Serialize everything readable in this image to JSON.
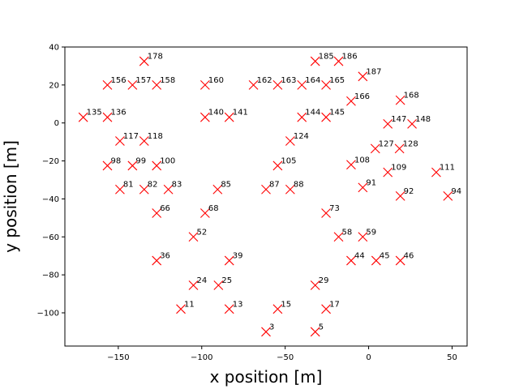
{
  "chart_data": {
    "type": "scatter",
    "title": "",
    "xlabel": "x position [m]",
    "ylabel": "y position [m]",
    "xlim": [
      -182,
      59
    ],
    "ylim": [
      -117.5,
      40
    ],
    "xticks": [
      -150,
      -100,
      -50,
      0,
      50
    ],
    "yticks": [
      -100,
      -80,
      -60,
      -40,
      -20,
      0,
      20,
      40
    ],
    "grid": false,
    "marker": "x",
    "marker_color": "#ff0000",
    "points": [
      {
        "label": "3",
        "x": -61.5,
        "y": -110
      },
      {
        "label": "5",
        "x": -32,
        "y": -110
      },
      {
        "label": "11",
        "x": -112.5,
        "y": -98
      },
      {
        "label": "13",
        "x": -83.5,
        "y": -98
      },
      {
        "label": "15",
        "x": -54.5,
        "y": -98
      },
      {
        "label": "17",
        "x": -25.5,
        "y": -98
      },
      {
        "label": "24",
        "x": -105,
        "y": -85.5
      },
      {
        "label": "25",
        "x": -90,
        "y": -85.5
      },
      {
        "label": "29",
        "x": -32,
        "y": -85.5
      },
      {
        "label": "36",
        "x": -127,
        "y": -72.5
      },
      {
        "label": "39",
        "x": -83.5,
        "y": -72.5
      },
      {
        "label": "44",
        "x": -10.5,
        "y": -72.5
      },
      {
        "label": "45",
        "x": 4.5,
        "y": -72.5
      },
      {
        "label": "46",
        "x": 19,
        "y": -72.5
      },
      {
        "label": "52",
        "x": -105,
        "y": -60
      },
      {
        "label": "58",
        "x": -18,
        "y": -60
      },
      {
        "label": "59",
        "x": -3.5,
        "y": -60
      },
      {
        "label": "66",
        "x": -127,
        "y": -47.5
      },
      {
        "label": "68",
        "x": -98,
        "y": -47.5
      },
      {
        "label": "73",
        "x": -25.5,
        "y": -47.5
      },
      {
        "label": "81",
        "x": -149,
        "y": -35
      },
      {
        "label": "82",
        "x": -134.5,
        "y": -35
      },
      {
        "label": "83",
        "x": -120,
        "y": -35
      },
      {
        "label": "85",
        "x": -90.5,
        "y": -35
      },
      {
        "label": "87",
        "x": -61.5,
        "y": -35
      },
      {
        "label": "88",
        "x": -47,
        "y": -35
      },
      {
        "label": "91",
        "x": -3.5,
        "y": -34
      },
      {
        "label": "92",
        "x": 19,
        "y": -38.5
      },
      {
        "label": "94",
        "x": 47.5,
        "y": -38.5
      },
      {
        "label": "98",
        "x": -156.5,
        "y": -22.5
      },
      {
        "label": "99",
        "x": -141.5,
        "y": -22.5
      },
      {
        "label": "100",
        "x": -127,
        "y": -22.5
      },
      {
        "label": "105",
        "x": -54.5,
        "y": -22.5
      },
      {
        "label": "108",
        "x": -10.5,
        "y": -22
      },
      {
        "label": "109",
        "x": 11.5,
        "y": -26
      },
      {
        "label": "111",
        "x": 40.5,
        "y": -26
      },
      {
        "label": "117",
        "x": -149,
        "y": -9.5
      },
      {
        "label": "118",
        "x": -134.5,
        "y": -9.5
      },
      {
        "label": "124",
        "x": -47,
        "y": -9.5
      },
      {
        "label": "127",
        "x": 4,
        "y": -13.5
      },
      {
        "label": "128",
        "x": 18.5,
        "y": -13.5
      },
      {
        "label": "135",
        "x": -171,
        "y": 3
      },
      {
        "label": "136",
        "x": -156.5,
        "y": 3
      },
      {
        "label": "140",
        "x": -98,
        "y": 3
      },
      {
        "label": "141",
        "x": -83.5,
        "y": 3
      },
      {
        "label": "144",
        "x": -40,
        "y": 3
      },
      {
        "label": "145",
        "x": -25.5,
        "y": 3
      },
      {
        "label": "147",
        "x": 11.5,
        "y": -0.5
      },
      {
        "label": "148",
        "x": 26,
        "y": -0.5
      },
      {
        "label": "156",
        "x": -156.5,
        "y": 20
      },
      {
        "label": "157",
        "x": -141.5,
        "y": 20
      },
      {
        "label": "158",
        "x": -127,
        "y": 20
      },
      {
        "label": "160",
        "x": -98,
        "y": 20
      },
      {
        "label": "162",
        "x": -69,
        "y": 20
      },
      {
        "label": "163",
        "x": -54.5,
        "y": 20
      },
      {
        "label": "164",
        "x": -40,
        "y": 20
      },
      {
        "label": "165",
        "x": -25.5,
        "y": 20
      },
      {
        "label": "166",
        "x": -10.5,
        "y": 11.5
      },
      {
        "label": "168",
        "x": 19,
        "y": 12
      },
      {
        "label": "178",
        "x": -134.5,
        "y": 32.5
      },
      {
        "label": "185",
        "x": -32,
        "y": 32.5
      },
      {
        "label": "186",
        "x": -18,
        "y": 32.5
      },
      {
        "label": "187",
        "x": -3.5,
        "y": 24.5
      }
    ]
  }
}
